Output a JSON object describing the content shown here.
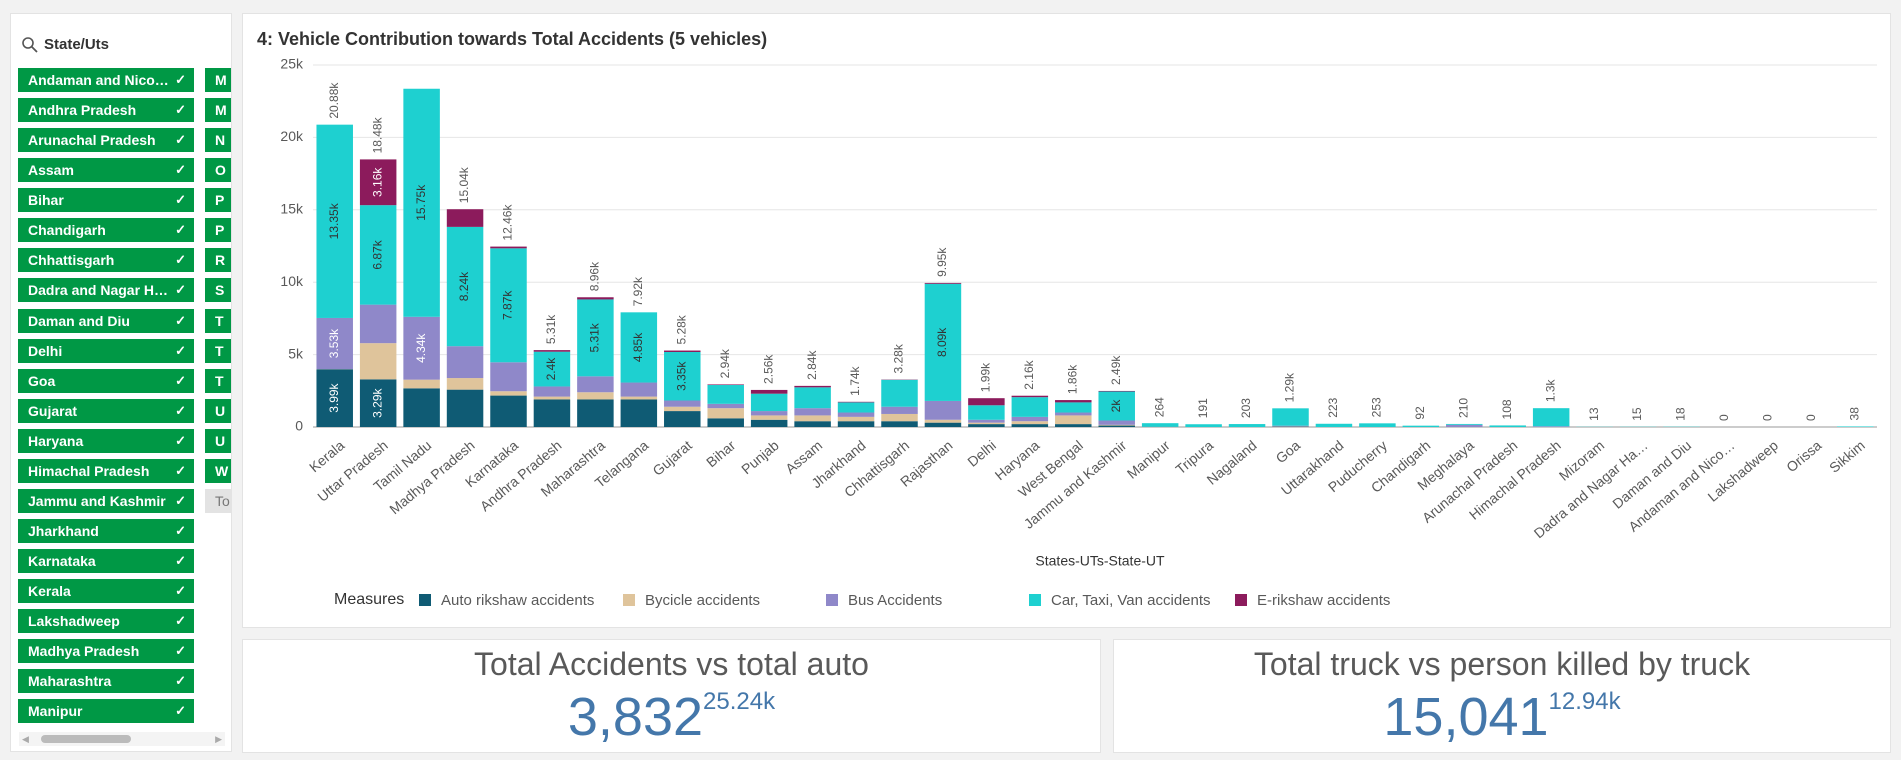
{
  "filters": {
    "title": "State/Uts",
    "items": [
      "Andaman and Nico…",
      "Andhra Pradesh",
      "Arunachal Pradesh",
      "Assam",
      "Bihar",
      "Chandigarh",
      "Chhattisgarh",
      "Dadra and Nagar H…",
      "Daman and Diu",
      "Delhi",
      "Goa",
      "Gujarat",
      "Haryana",
      "Himachal Pradesh",
      "Jammu and Kashmir",
      "Jharkhand",
      "Karnataka",
      "Kerala",
      "Lakshadweep",
      "Madhya Pradesh",
      "Maharashtra",
      "Manipur"
    ],
    "column2": [
      "M",
      "M",
      "N",
      "O",
      "P",
      "P",
      "R",
      "S",
      "T",
      "T",
      "T",
      "U",
      "U",
      "W",
      "To"
    ]
  },
  "chart_data": {
    "type": "bar",
    "stacked": true,
    "title": "4: Vehicle Contribution towards Total Accidents (5 vehicles)",
    "x_label": "States-UTs-State-UT",
    "legend_title": "Measures",
    "categories": [
      "Kerala",
      "Uttar Pradesh",
      "Tamil Nadu",
      "Madhya Pradesh",
      "Karnataka",
      "Andhra Pradesh",
      "Maharashtra",
      "Telangana",
      "Gujarat",
      "Bihar",
      "Punjab",
      "Assam",
      "Jharkhand",
      "Chhattisgarh",
      "Rajasthan",
      "Delhi",
      "Haryana",
      "West Bengal",
      "Jammu and Kashmir",
      "Manipur",
      "Tripura",
      "Nagaland",
      "Goa",
      "Uttarakhand",
      "Puducherry",
      "Chandigarh",
      "Meghalaya",
      "Arunachal Pradesh",
      "Himachal Pradesh",
      "Mizoram",
      "Dadra and Nagar Ha…",
      "Daman and Diu",
      "Andaman and Nico…",
      "Lakshadweep",
      "Orissa",
      "Sikkim"
    ],
    "series": [
      {
        "name": "Auto rikshaw accidents",
        "color": "#0f5b74",
        "values": [
          3990,
          3290,
          2670,
          2580,
          2170,
          1900,
          1900,
          1900,
          1100,
          600,
          500,
          400,
          400,
          400,
          300,
          200,
          200,
          200,
          100,
          0,
          0,
          0,
          30,
          0,
          0,
          0,
          0,
          0,
          0,
          0,
          0,
          0,
          0,
          0,
          0,
          0
        ],
        "value_labels": [
          "3.99k",
          "3.29k",
          null,
          null,
          null,
          null,
          null,
          null,
          null,
          null,
          null,
          null,
          null,
          null,
          null,
          null,
          null,
          null,
          null,
          null,
          null,
          null,
          null,
          null,
          null,
          null,
          null,
          null,
          null,
          null,
          null,
          null,
          null,
          null,
          null,
          null
        ]
      },
      {
        "name": "Bycicle accidents",
        "color": "#dfc49b",
        "values": [
          10,
          2500,
          600,
          800,
          300,
          200,
          500,
          200,
          300,
          700,
          300,
          400,
          300,
          500,
          200,
          100,
          200,
          600,
          50,
          0,
          0,
          0,
          20,
          0,
          0,
          0,
          0,
          0,
          0,
          0,
          0,
          0,
          0,
          0,
          0,
          0
        ]
      },
      {
        "name": "Bus Accidents",
        "color": "#8f88c9",
        "values": [
          3530,
          2660,
          4340,
          2200,
          2000,
          700,
          1100,
          970,
          430,
          300,
          300,
          500,
          300,
          500,
          1300,
          200,
          300,
          200,
          300,
          14,
          0,
          0,
          40,
          0,
          0,
          0,
          150,
          0,
          50,
          0,
          0,
          0,
          0,
          0,
          0,
          0
        ],
        "value_labels": [
          "3.53k",
          null,
          "4.34k",
          null,
          null,
          null,
          null,
          null,
          null,
          null,
          null,
          null,
          null,
          null,
          null,
          null,
          null,
          null,
          null,
          null,
          null,
          null,
          null,
          null,
          null,
          null,
          null,
          null,
          null,
          null,
          null,
          null,
          null,
          null,
          null,
          null
        ]
      },
      {
        "name": "Car, Taxi, Van accidents",
        "color": "#1ed0d0",
        "values": [
          13350,
          6870,
          15750,
          8240,
          7870,
          2400,
          5310,
          4850,
          3350,
          1300,
          1200,
          1440,
          700,
          1860,
          8090,
          1000,
          1360,
          700,
          2000,
          250,
          191,
          203,
          1200,
          223,
          253,
          92,
          60,
          108,
          1250,
          13,
          15,
          18,
          0,
          0,
          0,
          38
        ],
        "value_labels": [
          "13.35k",
          "6.87k",
          "15.75k",
          "8.24k",
          "7.87k",
          "2.4k",
          "5.31k",
          "4.85k",
          "3.35k",
          null,
          null,
          null,
          null,
          null,
          "8.09k",
          null,
          null,
          null,
          "2k",
          null,
          null,
          null,
          null,
          null,
          null,
          null,
          null,
          null,
          null,
          null,
          null,
          null,
          null,
          null,
          null,
          null
        ]
      },
      {
        "name": "E-rikshaw accidents",
        "color": "#8c1b5c",
        "values": [
          0,
          3160,
          0,
          1220,
          120,
          110,
          150,
          0,
          100,
          40,
          260,
          100,
          40,
          20,
          60,
          490,
          100,
          160,
          40,
          0,
          0,
          0,
          0,
          0,
          0,
          0,
          0,
          0,
          0,
          0,
          0,
          0,
          0,
          0,
          0,
          0
        ],
        "value_labels": [
          null,
          "3.16k",
          null,
          null,
          null,
          null,
          null,
          null,
          null,
          null,
          null,
          null,
          null,
          null,
          null,
          null,
          null,
          null,
          null,
          null,
          null,
          null,
          null,
          null,
          null,
          null,
          null,
          null,
          null,
          null,
          null,
          null,
          null,
          null,
          null,
          null
        ]
      }
    ],
    "totals": [
      20880,
      18480,
      null,
      15040,
      12460,
      5310,
      8960,
      7920,
      5280,
      2940,
      2560,
      2840,
      1740,
      3280,
      9950,
      1990,
      2160,
      1860,
      2490,
      264,
      191,
      203,
      1290,
      223,
      253,
      92,
      210,
      108,
      1300,
      13,
      15,
      18,
      0,
      0,
      0,
      38
    ],
    "total_labels": [
      "20.88k",
      "18.48k",
      null,
      "15.04k",
      "12.46k",
      "5.31k",
      "8.96k",
      "7.92k",
      "5.28k",
      "2.94k",
      "2.56k",
      "2.84k",
      "1.74k",
      "3.28k",
      "9.95k",
      "1.99k",
      "2.16k",
      "1.86k",
      "2.49k",
      "264",
      "191",
      "203",
      "1.29k",
      "223",
      "253",
      "92",
      "210",
      "108",
      "1.3k",
      "13",
      "15",
      "18",
      "0",
      "0",
      "0",
      "38"
    ],
    "ylim": [
      0,
      25000
    ],
    "yticks": [
      0,
      {
        "value": 5000,
        "label": "5k"
      },
      {
        "value": 10000,
        "label": "10k"
      },
      {
        "value": 15000,
        "label": "15k"
      },
      {
        "value": 20000,
        "label": "20k"
      },
      {
        "value": 25000,
        "label": "25k"
      }
    ],
    "grid": true
  },
  "kpis": [
    {
      "title": "Total Accidents vs total auto",
      "value": "3,832",
      "secondary": "25.24k"
    },
    {
      "title": "Total truck vs person killed by truck",
      "value": "15,041",
      "secondary": "12.94k"
    }
  ]
}
